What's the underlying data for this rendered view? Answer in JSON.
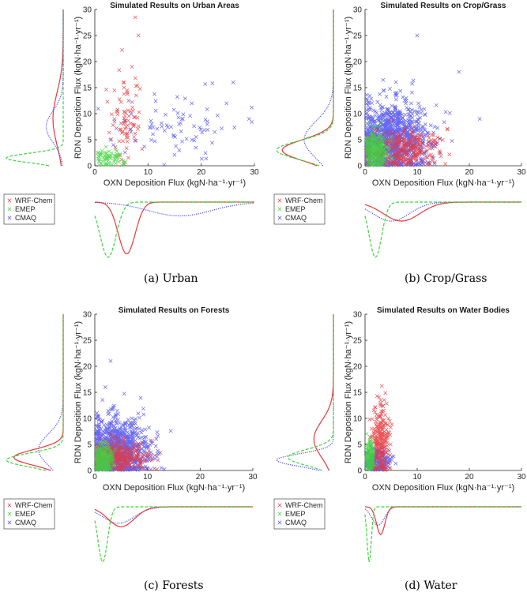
{
  "chart_data": [
    {
      "type": "scatter",
      "panel": "a",
      "title": "Simulated Results on Urban Areas",
      "caption": "(a)  Urban",
      "xlabel": "OXN Deposition Flux (kgN·ha⁻¹·yr⁻¹)",
      "ylabel": "RDN Deposition Flux (kgN·ha⁻¹·yr⁻¹)",
      "xlim": [
        0,
        30
      ],
      "ylim": [
        0,
        30
      ],
      "xticks": [
        "0",
        "10",
        "20",
        "30"
      ],
      "yticks": [
        "0",
        "5",
        "10",
        "15",
        "20",
        "25",
        "30"
      ],
      "legend": [
        "WRF-Chem",
        "EMEP",
        "CMAQ"
      ],
      "series": [
        {
          "name": "WRF-Chem",
          "color": "#e8383b",
          "cx": 6,
          "cy": 9,
          "sx": 1.6,
          "sy": 5,
          "n": 80,
          "extra": [
            [
              7.6,
              28.5
            ],
            [
              8.2,
              25
            ],
            [
              7,
              19
            ],
            [
              5.5,
              16
            ]
          ]
        },
        {
          "name": "EMEP",
          "color": "#3fd43c",
          "cx": 2.5,
          "cy": 1.5,
          "sx": 1.5,
          "sy": 0.9,
          "n": 70,
          "extra": []
        },
        {
          "name": "CMAQ",
          "color": "#4d4ef0",
          "cx": 16,
          "cy": 7.5,
          "sx": 6,
          "sy": 3,
          "n": 80,
          "extra": [
            [
              26,
              16
            ],
            [
              29,
              9
            ],
            [
              3.5,
              4
            ]
          ]
        }
      ]
    },
    {
      "type": "scatter",
      "panel": "b",
      "title": "Simulated Results on Crop/Grass",
      "caption": "(b)  Crop/Grass",
      "xlabel": "OXN Deposition Flux (kgN·ha⁻¹·yr⁻¹)",
      "ylabel": "RDN Deposition Flux (kgN·ha⁻¹·yr⁻¹)",
      "xlim": [
        0,
        30
      ],
      "ylim": [
        0,
        30
      ],
      "xticks": [
        "0",
        "10",
        "20",
        "30"
      ],
      "yticks": [
        "0",
        "5",
        "10",
        "15",
        "20",
        "25",
        "30"
      ],
      "legend": [
        "WRF-Chem",
        "EMEP",
        "CMAQ"
      ],
      "series": [
        {
          "name": "CMAQ",
          "color": "#4d4ef0",
          "cx": 5,
          "cy": 5,
          "sx": 3.5,
          "sy": 3.5,
          "n": 1100,
          "extra": [
            [
              10,
              25
            ],
            [
              22,
              9
            ],
            [
              18,
              18
            ]
          ]
        },
        {
          "name": "WRF-Chem",
          "color": "#e8383b",
          "cx": 7,
          "cy": 3,
          "sx": 3.5,
          "sy": 2,
          "n": 300,
          "extra": []
        },
        {
          "name": "EMEP",
          "color": "#3fd43c",
          "cx": 2,
          "cy": 3,
          "sx": 1.2,
          "sy": 1.8,
          "n": 300,
          "extra": []
        }
      ]
    },
    {
      "type": "scatter",
      "panel": "c",
      "title": "Simulated Results on Forests",
      "caption": "(c)  Forests",
      "xlabel": "OXN Deposition Flux (kgN·ha⁻¹·yr⁻¹)",
      "ylabel": "RDN Deposition Flux (kgN·ha⁻¹·yr⁻¹)",
      "xlim": [
        0,
        30
      ],
      "ylim": [
        0,
        30
      ],
      "xticks": [
        "0",
        "10",
        "20",
        "30"
      ],
      "yticks": [
        "0",
        "5",
        "10",
        "15",
        "20",
        "25",
        "30"
      ],
      "legend": [
        "WRF-Chem",
        "EMEP",
        "CMAQ"
      ],
      "series": [
        {
          "name": "CMAQ",
          "color": "#4d4ef0",
          "cx": 4.5,
          "cy": 4,
          "sx": 3,
          "sy": 3,
          "n": 900,
          "extra": [
            [
              3,
              21
            ],
            [
              2,
              16
            ]
          ]
        },
        {
          "name": "WRF-Chem",
          "color": "#e8383b",
          "cx": 5,
          "cy": 2.5,
          "sx": 2.5,
          "sy": 1.5,
          "n": 300,
          "extra": []
        },
        {
          "name": "EMEP",
          "color": "#3fd43c",
          "cx": 1.5,
          "cy": 2,
          "sx": 0.9,
          "sy": 1.3,
          "n": 300,
          "extra": []
        }
      ]
    },
    {
      "type": "scatter",
      "panel": "d",
      "title": "Simulated Results on Water Bodies",
      "caption": "(d)  Water",
      "xlabel": "OXN Deposition Flux (kgN·ha⁻¹·yr⁻¹)",
      "ylabel": "RDN Deposition Flux (kgN·ha⁻¹·yr⁻¹)",
      "xlim": [
        0,
        30
      ],
      "ylim": [
        0,
        30
      ],
      "xticks": [
        "0",
        "10",
        "20",
        "30"
      ],
      "yticks": [
        "0",
        "5",
        "10",
        "15",
        "20",
        "25",
        "30"
      ],
      "legend": [
        "WRF-Chem",
        "EMEP",
        "CMAQ"
      ],
      "series": [
        {
          "name": "CMAQ",
          "color": "#4d4ef0",
          "cx": 2.5,
          "cy": 2,
          "sx": 1.2,
          "sy": 1.2,
          "n": 200,
          "extra": []
        },
        {
          "name": "WRF-Chem",
          "color": "#e8383b",
          "cx": 3,
          "cy": 6,
          "sx": 0.8,
          "sy": 3.5,
          "n": 250,
          "extra": [
            [
              3,
              13.5
            ]
          ]
        },
        {
          "name": "EMEP",
          "color": "#3fd43c",
          "cx": 0.8,
          "cy": 2.5,
          "sx": 0.4,
          "sy": 1.5,
          "n": 200,
          "extra": []
        }
      ]
    }
  ]
}
